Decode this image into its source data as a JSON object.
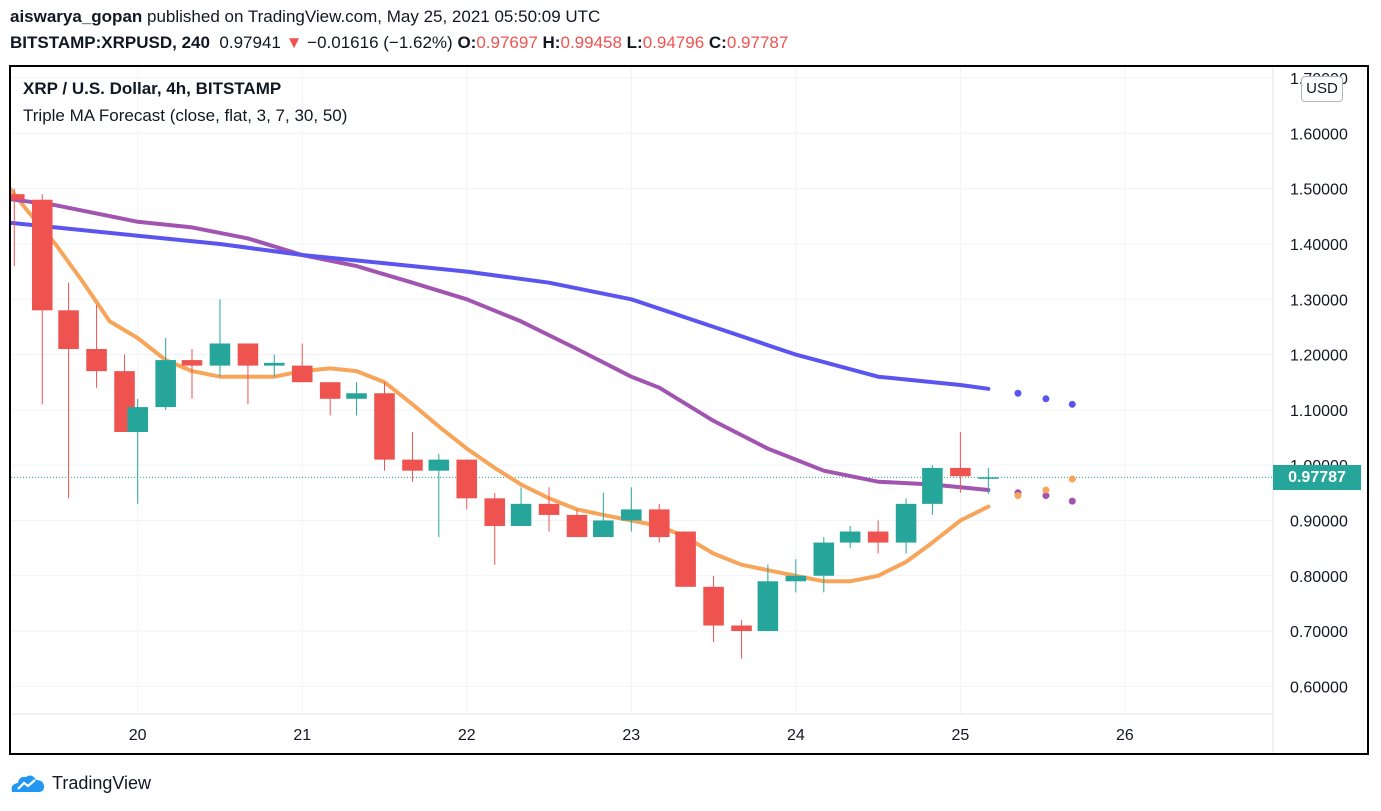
{
  "header": {
    "author": "aiswarya_gopan",
    "published_text": "published on TradingView.com, May 25, 2021 05:50:09 UTC",
    "symbol": "BITSTAMP:XRPUSD, 240",
    "last": "0.97941",
    "change_arrow": "▼",
    "change": "−0.01616 (−1.62%)",
    "o_label": "O:",
    "o_val": "0.97697",
    "h_label": "H:",
    "h_val": "0.99458",
    "l_label": "L:",
    "l_val": "0.94796",
    "c_label": "C:",
    "c_val": "0.97787"
  },
  "legend": {
    "title": "XRP / U.S. Dollar, 4h, BITSTAMP",
    "indicator": "Triple MA Forecast (close, flat, 3, 7, 30, 50)"
  },
  "currency": "USD",
  "price_tag": "0.97787",
  "brand": "TradingView",
  "colors": {
    "up": "#26a69a",
    "down": "#ef5350",
    "ma_fast": "#f7a55a",
    "ma_mid": "#a155b0",
    "ma_slow": "#5b55f0",
    "grid": "#f0f3fa"
  },
  "chart_data": {
    "type": "candlestick",
    "title": "XRP / U.S. Dollar, 4h, BITSTAMP",
    "x_ticks": [
      "20",
      "21",
      "22",
      "23",
      "24",
      "25",
      "26"
    ],
    "y_ticks": [
      "1.70000",
      "1.60000",
      "1.50000",
      "1.40000",
      "1.30000",
      "1.20000",
      "1.10000",
      "1.00000",
      "0.90000",
      "0.80000",
      "0.70000",
      "0.60000"
    ],
    "ylim": [
      0.55,
      1.72
    ],
    "xlim": [
      19.23,
      26.9
    ],
    "last_price": 0.97787,
    "candles": [
      {
        "t": 19.25,
        "o": 1.49,
        "h": 1.5,
        "l": 1.36,
        "c": 1.48
      },
      {
        "t": 19.42,
        "o": 1.48,
        "h": 1.49,
        "l": 1.11,
        "c": 1.28
      },
      {
        "t": 19.58,
        "o": 1.28,
        "h": 1.33,
        "l": 0.94,
        "c": 1.21
      },
      {
        "t": 19.75,
        "o": 1.21,
        "h": 1.29,
        "l": 1.14,
        "c": 1.17
      },
      {
        "t": 19.92,
        "o": 1.17,
        "h": 1.2,
        "l": 1.06,
        "c": 1.06
      },
      {
        "t": 20.0,
        "o": 1.06,
        "h": 1.12,
        "l": 0.93,
        "c": 1.105
      },
      {
        "t": 20.17,
        "o": 1.105,
        "h": 1.23,
        "l": 1.1,
        "c": 1.19
      },
      {
        "t": 20.33,
        "o": 1.19,
        "h": 1.21,
        "l": 1.12,
        "c": 1.18
      },
      {
        "t": 20.5,
        "o": 1.18,
        "h": 1.3,
        "l": 1.16,
        "c": 1.22
      },
      {
        "t": 20.67,
        "o": 1.22,
        "h": 1.22,
        "l": 1.11,
        "c": 1.18
      },
      {
        "t": 20.83,
        "o": 1.18,
        "h": 1.2,
        "l": 1.16,
        "c": 1.185
      },
      {
        "t": 21.0,
        "o": 1.18,
        "h": 1.22,
        "l": 1.15,
        "c": 1.15
      },
      {
        "t": 21.17,
        "o": 1.15,
        "h": 1.15,
        "l": 1.09,
        "c": 1.12
      },
      {
        "t": 21.33,
        "o": 1.12,
        "h": 1.15,
        "l": 1.09,
        "c": 1.13
      },
      {
        "t": 21.5,
        "o": 1.13,
        "h": 1.15,
        "l": 0.99,
        "c": 1.01
      },
      {
        "t": 21.67,
        "o": 1.01,
        "h": 1.06,
        "l": 0.97,
        "c": 0.99
      },
      {
        "t": 21.83,
        "o": 0.99,
        "h": 1.02,
        "l": 0.87,
        "c": 1.01
      },
      {
        "t": 22.0,
        "o": 1.01,
        "h": 1.01,
        "l": 0.92,
        "c": 0.94
      },
      {
        "t": 22.17,
        "o": 0.94,
        "h": 0.95,
        "l": 0.82,
        "c": 0.89
      },
      {
        "t": 22.33,
        "o": 0.89,
        "h": 0.96,
        "l": 0.89,
        "c": 0.93
      },
      {
        "t": 22.5,
        "o": 0.93,
        "h": 0.96,
        "l": 0.88,
        "c": 0.91
      },
      {
        "t": 22.67,
        "o": 0.91,
        "h": 0.92,
        "l": 0.87,
        "c": 0.87
      },
      {
        "t": 22.83,
        "o": 0.87,
        "h": 0.95,
        "l": 0.87,
        "c": 0.9
      },
      {
        "t": 23.0,
        "o": 0.9,
        "h": 0.96,
        "l": 0.88,
        "c": 0.92
      },
      {
        "t": 23.17,
        "o": 0.92,
        "h": 0.93,
        "l": 0.86,
        "c": 0.87
      },
      {
        "t": 23.33,
        "o": 0.88,
        "h": 0.88,
        "l": 0.78,
        "c": 0.78
      },
      {
        "t": 23.5,
        "o": 0.78,
        "h": 0.8,
        "l": 0.68,
        "c": 0.71
      },
      {
        "t": 23.67,
        "o": 0.71,
        "h": 0.72,
        "l": 0.65,
        "c": 0.7
      },
      {
        "t": 23.83,
        "o": 0.7,
        "h": 0.82,
        "l": 0.7,
        "c": 0.79
      },
      {
        "t": 24.0,
        "o": 0.79,
        "h": 0.83,
        "l": 0.77,
        "c": 0.8
      },
      {
        "t": 24.17,
        "o": 0.8,
        "h": 0.87,
        "l": 0.77,
        "c": 0.86
      },
      {
        "t": 24.33,
        "o": 0.86,
        "h": 0.89,
        "l": 0.85,
        "c": 0.88
      },
      {
        "t": 24.5,
        "o": 0.88,
        "h": 0.9,
        "l": 0.84,
        "c": 0.86
      },
      {
        "t": 24.67,
        "o": 0.86,
        "h": 0.94,
        "l": 0.84,
        "c": 0.93
      },
      {
        "t": 24.83,
        "o": 0.93,
        "h": 1.0,
        "l": 0.91,
        "c": 0.995
      },
      {
        "t": 25.0,
        "o": 0.995,
        "h": 1.06,
        "l": 0.95,
        "c": 0.98
      },
      {
        "t": 25.17,
        "o": 0.977,
        "h": 0.995,
        "l": 0.948,
        "c": 0.978
      }
    ],
    "series": [
      {
        "key": "ma_fast",
        "t": [
          19.0,
          19.17,
          19.33,
          19.5,
          19.67,
          19.83,
          20.0,
          20.17,
          20.33,
          20.5,
          20.67,
          20.83,
          21.0,
          21.17,
          21.33,
          21.5,
          21.67,
          21.83,
          22.0,
          22.17,
          22.33,
          22.5,
          22.67,
          22.83,
          23.0,
          23.17,
          23.33,
          23.5,
          23.67,
          23.83,
          24.0,
          24.17,
          24.33,
          24.5,
          24.67,
          24.83,
          25.0,
          25.17
        ],
        "v": [
          1.56,
          1.52,
          1.46,
          1.4,
          1.33,
          1.26,
          1.23,
          1.19,
          1.17,
          1.16,
          1.16,
          1.16,
          1.17,
          1.175,
          1.17,
          1.15,
          1.11,
          1.07,
          1.03,
          0.995,
          0.965,
          0.94,
          0.92,
          0.91,
          0.9,
          0.89,
          0.87,
          0.84,
          0.82,
          0.81,
          0.8,
          0.79,
          0.79,
          0.8,
          0.825,
          0.86,
          0.9,
          0.925
        ]
      },
      {
        "key": "ma_mid",
        "t": [
          19.0,
          19.5,
          20.0,
          20.33,
          20.67,
          21.0,
          21.33,
          21.67,
          22.0,
          22.33,
          22.67,
          23.0,
          23.17,
          23.5,
          23.83,
          24.17,
          24.5,
          24.83,
          25.17
        ],
        "v": [
          1.49,
          1.47,
          1.44,
          1.43,
          1.41,
          1.38,
          1.36,
          1.33,
          1.3,
          1.26,
          1.21,
          1.16,
          1.14,
          1.08,
          1.03,
          0.99,
          0.97,
          0.965,
          0.955
        ]
      },
      {
        "key": "ma_slow",
        "t": [
          19.0,
          19.5,
          20.0,
          20.5,
          21.0,
          21.5,
          22.0,
          22.5,
          23.0,
          23.5,
          24.0,
          24.5,
          25.0,
          25.17
        ],
        "v": [
          1.445,
          1.43,
          1.415,
          1.4,
          1.38,
          1.365,
          1.35,
          1.33,
          1.3,
          1.25,
          1.2,
          1.16,
          1.145,
          1.138
        ]
      }
    ],
    "forecast_points": [
      {
        "key": "ma_slow",
        "t": [
          25.35,
          25.52,
          25.68
        ],
        "v": [
          1.13,
          1.12,
          1.11
        ]
      },
      {
        "key": "ma_mid",
        "t": [
          25.35,
          25.52,
          25.68
        ],
        "v": [
          0.95,
          0.945,
          0.935
        ]
      },
      {
        "key": "ma_fast",
        "t": [
          25.35,
          25.52,
          25.68
        ],
        "v": [
          0.945,
          0.955,
          0.975
        ]
      }
    ]
  }
}
